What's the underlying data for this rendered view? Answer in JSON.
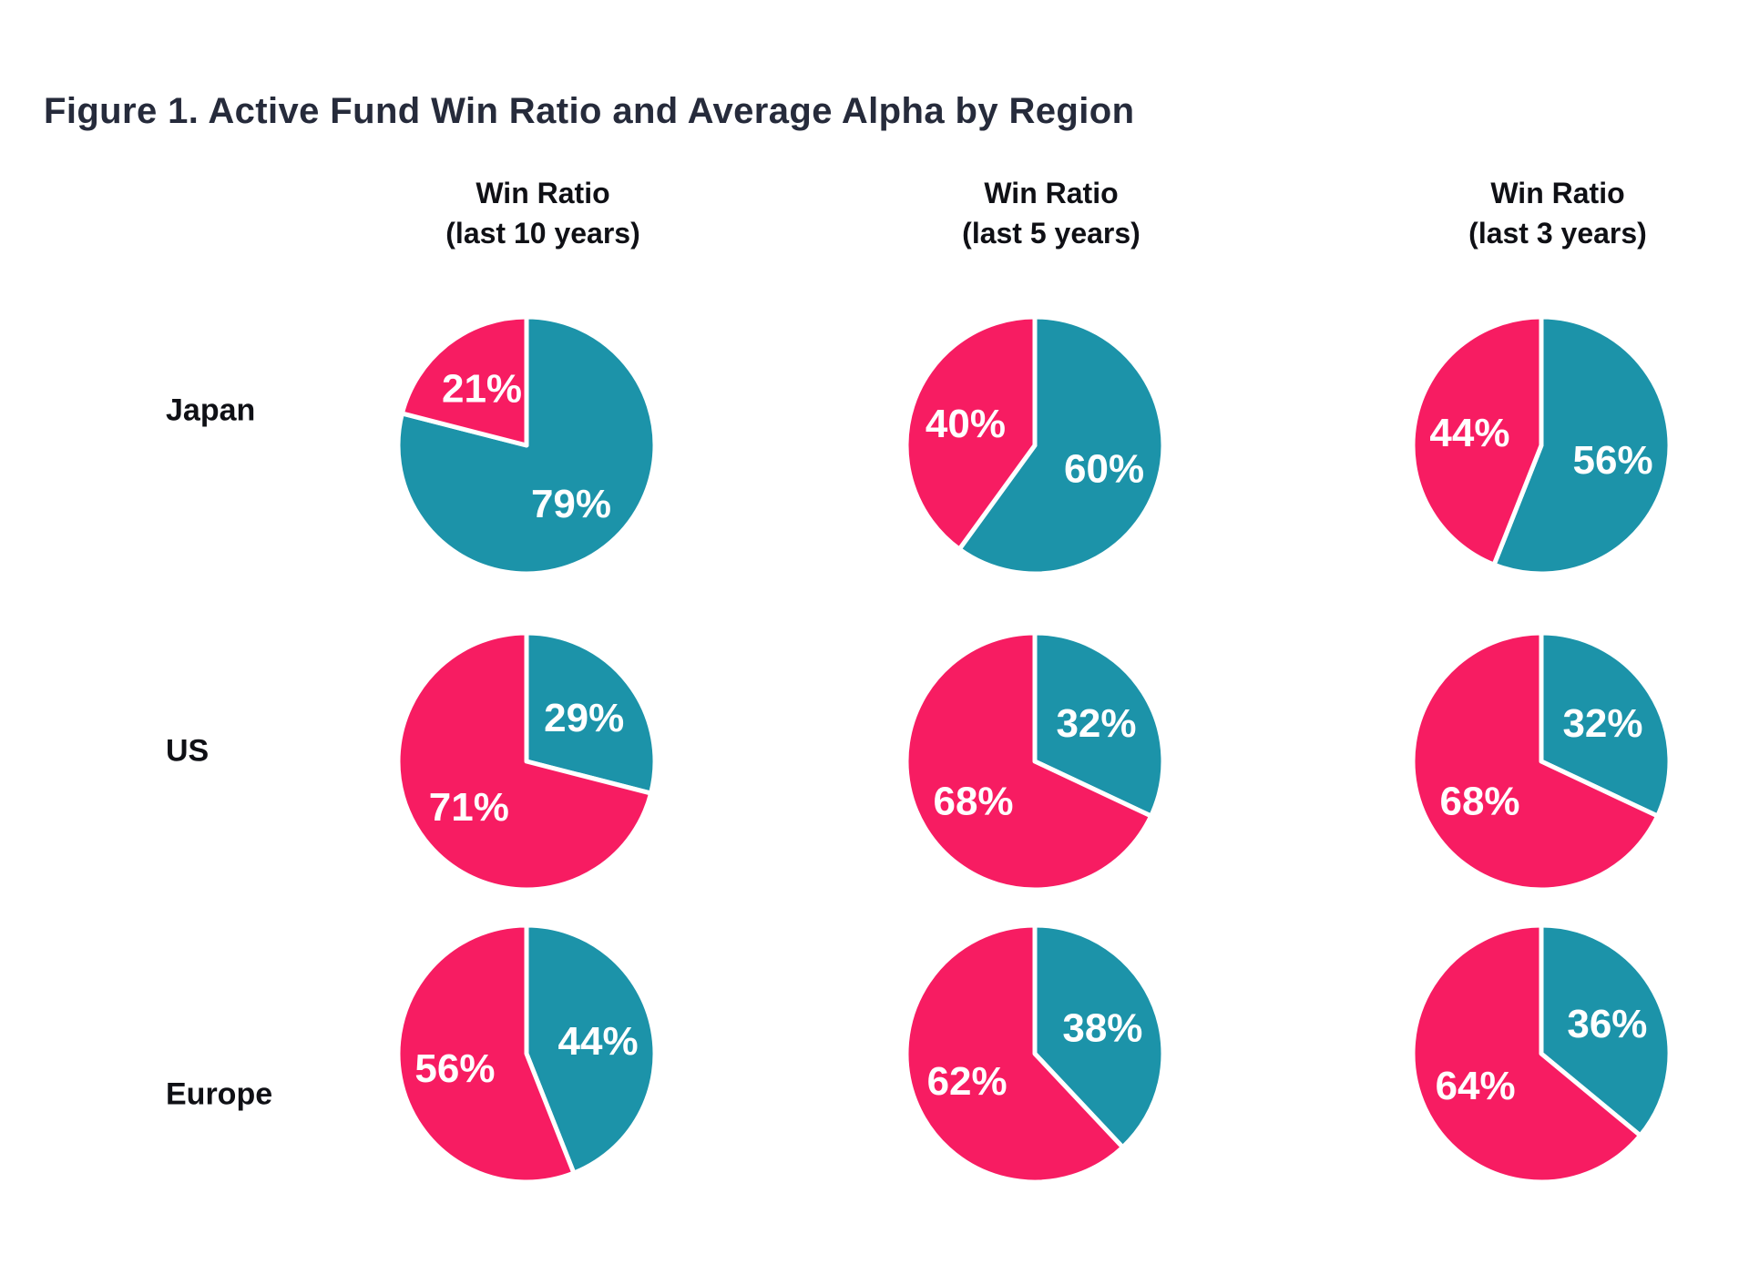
{
  "title": "Figure 1. Active Fund Win Ratio and Average Alpha by Region",
  "columns": [
    {
      "line1": "Win Ratio",
      "line2": "(last 10 years)"
    },
    {
      "line1": "Win Ratio",
      "line2": "(last 5 years)"
    },
    {
      "line1": "Win Ratio",
      "line2": "(last 3 years)"
    }
  ],
  "row_labels": [
    "Japan",
    "US",
    "Europe"
  ],
  "colors": {
    "pink": "#F71C62",
    "teal": "#1C93A9",
    "title_text": "#262B3B",
    "header_text": "#0F1015",
    "percent_text": "#FFFFFF",
    "background": "#FFFFFF"
  },
  "chart_data": {
    "type": "pie",
    "layout": "3x3-grid",
    "unit": "%",
    "start_angle_deg": 0,
    "direction": "clockwise",
    "first_slice_color": "teal",
    "columns": [
      "Win Ratio (last 10 years)",
      "Win Ratio (last 5 years)",
      "Win Ratio (last 3 years)"
    ],
    "rows": [
      "Japan",
      "US",
      "Europe"
    ],
    "pies": [
      {
        "row": "Japan",
        "column": "Win Ratio (last 10 years)",
        "slices": [
          {
            "color": "teal",
            "value": 79,
            "label": "79%"
          },
          {
            "color": "pink",
            "value": 21,
            "label": "21%"
          }
        ]
      },
      {
        "row": "Japan",
        "column": "Win Ratio (last 5 years)",
        "slices": [
          {
            "color": "teal",
            "value": 60,
            "label": "60%"
          },
          {
            "color": "pink",
            "value": 40,
            "label": "40%"
          }
        ]
      },
      {
        "row": "Japan",
        "column": "Win Ratio (last 3 years)",
        "slices": [
          {
            "color": "teal",
            "value": 56,
            "label": "56%"
          },
          {
            "color": "pink",
            "value": 44,
            "label": "44%"
          }
        ]
      },
      {
        "row": "US",
        "column": "Win Ratio (last 10 years)",
        "slices": [
          {
            "color": "teal",
            "value": 29,
            "label": "29%"
          },
          {
            "color": "pink",
            "value": 71,
            "label": "71%"
          }
        ]
      },
      {
        "row": "US",
        "column": "Win Ratio (last 5 years)",
        "slices": [
          {
            "color": "teal",
            "value": 32,
            "label": "32%"
          },
          {
            "color": "pink",
            "value": 68,
            "label": "68%"
          }
        ]
      },
      {
        "row": "US",
        "column": "Win Ratio (last 3 years)",
        "slices": [
          {
            "color": "teal",
            "value": 32,
            "label": "32%"
          },
          {
            "color": "pink",
            "value": 68,
            "label": "68%"
          }
        ]
      },
      {
        "row": "Europe",
        "column": "Win Ratio (last 10 years)",
        "slices": [
          {
            "color": "teal",
            "value": 44,
            "label": "44%"
          },
          {
            "color": "pink",
            "value": 56,
            "label": "56%"
          }
        ]
      },
      {
        "row": "Europe",
        "column": "Win Ratio (last 5 years)",
        "slices": [
          {
            "color": "teal",
            "value": 38,
            "label": "38%"
          },
          {
            "color": "pink",
            "value": 62,
            "label": "62%"
          }
        ]
      },
      {
        "row": "Europe",
        "column": "Win Ratio (last 3 years)",
        "slices": [
          {
            "color": "teal",
            "value": 36,
            "label": "36%"
          },
          {
            "color": "pink",
            "value": 64,
            "label": "64%"
          }
        ]
      }
    ]
  }
}
